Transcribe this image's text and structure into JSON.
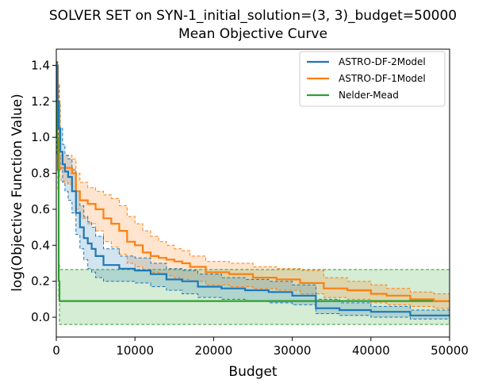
{
  "chart_data": {
    "type": "line",
    "title": "SOLVER SET on SYN-1_initial_solution=(3, 3)_budget=50000",
    "subtitle": "Mean Objective Curve",
    "xlabel": "Budget",
    "ylabel": "log(Objective Function Value)",
    "xlim": [
      0,
      50000
    ],
    "ylim": [
      -0.11,
      1.49
    ],
    "x_ticks": [
      0,
      10000,
      20000,
      30000,
      40000,
      50000
    ],
    "x_tick_labels": [
      "0",
      "10000",
      "20000",
      "30000",
      "40000",
      "50000"
    ],
    "y_ticks": [
      0.0,
      0.2,
      0.4,
      0.6,
      0.8,
      1.0,
      1.2,
      1.4
    ],
    "y_tick_labels": [
      "0.0",
      "0.2",
      "0.4",
      "0.6",
      "0.8",
      "1.0",
      "1.2",
      "1.4"
    ],
    "grid": false,
    "legend_position": "top-right",
    "line_style": "step",
    "series": [
      {
        "name": "ASTRO-DF-2Model",
        "color": "#1f77b4",
        "x": [
          0,
          150,
          300,
          500,
          800,
          1100,
          1500,
          2000,
          2500,
          3000,
          3500,
          4000,
          4500,
          5000,
          6000,
          8000,
          10000,
          12000,
          14000,
          16000,
          18000,
          21000,
          24000,
          27000,
          30000,
          33000,
          36000,
          40000,
          45000,
          50000
        ],
        "y": [
          1.4,
          1.2,
          1.05,
          0.92,
          0.85,
          0.81,
          0.78,
          0.7,
          0.58,
          0.5,
          0.44,
          0.41,
          0.38,
          0.34,
          0.29,
          0.27,
          0.26,
          0.24,
          0.21,
          0.2,
          0.17,
          0.16,
          0.15,
          0.14,
          0.12,
          0.05,
          0.04,
          0.03,
          0.01,
          0.01
        ],
        "lower": [
          1.3,
          1.05,
          0.9,
          0.82,
          0.75,
          0.7,
          0.65,
          0.58,
          0.46,
          0.38,
          0.32,
          0.27,
          0.25,
          0.22,
          0.2,
          0.2,
          0.19,
          0.17,
          0.15,
          0.13,
          0.11,
          0.1,
          0.09,
          0.08,
          0.07,
          0.02,
          0.01,
          0.0,
          -0.01,
          -0.01
        ],
        "upper": [
          1.42,
          1.3,
          1.18,
          1.05,
          0.96,
          0.9,
          0.88,
          0.82,
          0.7,
          0.62,
          0.56,
          0.53,
          0.5,
          0.45,
          0.38,
          0.34,
          0.33,
          0.3,
          0.27,
          0.26,
          0.24,
          0.22,
          0.21,
          0.2,
          0.18,
          0.1,
          0.08,
          0.06,
          0.04,
          0.04
        ]
      },
      {
        "name": "ASTRO-DF-1Model",
        "color": "#ff7f0e",
        "x": [
          0,
          200,
          400,
          600,
          1000,
          1500,
          2000,
          2500,
          3000,
          4000,
          5000,
          6000,
          7000,
          8000,
          9000,
          10000,
          11000,
          12000,
          13000,
          14000,
          15000,
          16000,
          17000,
          19000,
          22000,
          25000,
          28000,
          31000,
          34000,
          37000,
          40000,
          42000,
          45000,
          48000,
          50000
        ],
        "y": [
          1.4,
          1.2,
          0.83,
          0.83,
          0.83,
          0.83,
          0.8,
          0.7,
          0.65,
          0.63,
          0.6,
          0.55,
          0.52,
          0.48,
          0.42,
          0.4,
          0.36,
          0.34,
          0.33,
          0.32,
          0.31,
          0.3,
          0.28,
          0.25,
          0.24,
          0.22,
          0.21,
          0.19,
          0.16,
          0.15,
          0.13,
          0.12,
          0.1,
          0.09,
          0.09
        ],
        "lower": [
          1.35,
          1.1,
          0.78,
          0.76,
          0.75,
          0.74,
          0.7,
          0.6,
          0.55,
          0.52,
          0.48,
          0.42,
          0.39,
          0.35,
          0.3,
          0.28,
          0.26,
          0.25,
          0.24,
          0.23,
          0.22,
          0.21,
          0.2,
          0.18,
          0.17,
          0.16,
          0.15,
          0.13,
          0.11,
          0.1,
          0.08,
          0.07,
          0.06,
          0.05,
          0.04
        ],
        "upper": [
          1.42,
          1.3,
          0.9,
          0.9,
          0.9,
          0.9,
          0.88,
          0.8,
          0.75,
          0.72,
          0.7,
          0.68,
          0.66,
          0.62,
          0.56,
          0.52,
          0.48,
          0.45,
          0.42,
          0.4,
          0.38,
          0.37,
          0.34,
          0.31,
          0.3,
          0.28,
          0.27,
          0.26,
          0.22,
          0.2,
          0.18,
          0.16,
          0.14,
          0.13,
          0.13
        ]
      },
      {
        "name": "Nelder-Mead",
        "color": "#2ca02c",
        "x": [
          0,
          100,
          200,
          300,
          400,
          50000
        ],
        "y": [
          1.4,
          1.0,
          0.82,
          0.2,
          0.09,
          0.09
        ],
        "lower": [
          1.35,
          0.9,
          0.7,
          0.1,
          -0.04,
          -0.04
        ],
        "upper": [
          1.42,
          1.1,
          0.9,
          0.3,
          0.265,
          0.265
        ]
      }
    ]
  }
}
